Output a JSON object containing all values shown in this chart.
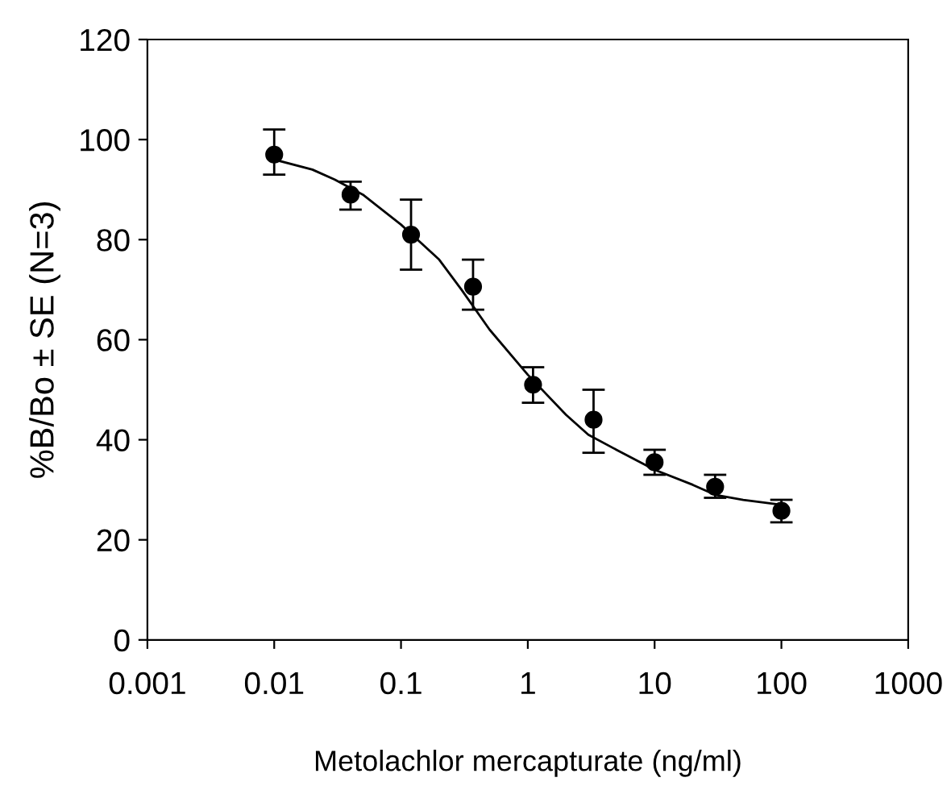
{
  "chart_data": {
    "type": "scatter",
    "xlabel": "Metolachlor mercapturate (ng/ml)",
    "ylabel": "%B/Bo ± SE (N=3)",
    "log": "x",
    "xlim": [
      0.001,
      1000
    ],
    "xticks": [
      0.001,
      0.01,
      0.1,
      1,
      10,
      100,
      1000
    ],
    "ylim": [
      0,
      120
    ],
    "yticks": [
      0,
      20,
      40,
      60,
      80,
      100,
      120
    ],
    "grid": false,
    "marker": "circle",
    "series": [
      {
        "color": "#000000",
        "x": [
          0.01,
          0.04,
          0.12,
          0.37,
          1.1,
          3.3,
          10,
          30,
          100
        ],
        "values": [
          97,
          89,
          81,
          70.6,
          51,
          44,
          35.5,
          30.6,
          25.8
        ],
        "errors": [
          [
            93,
            102
          ],
          [
            86,
            91.6
          ],
          [
            74,
            88
          ],
          [
            66,
            76
          ],
          [
            47.4,
            54.5
          ],
          [
            37.4,
            50
          ],
          [
            33,
            38
          ],
          [
            28.4,
            33
          ],
          [
            23.5,
            28
          ]
        ]
      },
      {
        "type": "line",
        "color": "#000000",
        "marker": "none",
        "line_style": "solid",
        "x": [
          0.01,
          0.02,
          0.03,
          0.05,
          0.1,
          0.2,
          0.3,
          0.5,
          1,
          2,
          3,
          5,
          10,
          20,
          30,
          50,
          100
        ],
        "values": [
          96,
          94,
          92,
          89,
          83,
          76,
          70,
          62,
          53,
          45,
          41,
          38,
          34,
          31,
          29,
          28,
          27
        ]
      }
    ]
  }
}
